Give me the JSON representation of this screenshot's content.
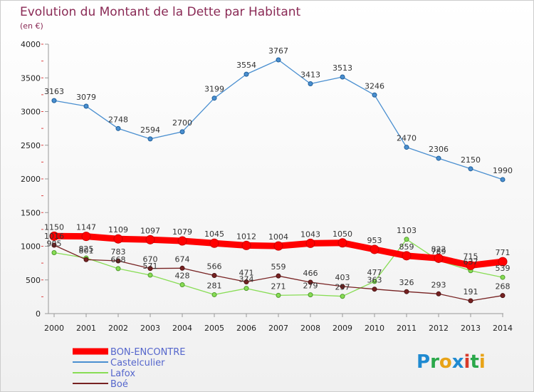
{
  "chart_data": {
    "type": "line",
    "title": "Evolution du Montant de la Dette par Habitant",
    "subtitle": "(en €)",
    "categories": [
      "2000",
      "2001",
      "2002",
      "2003",
      "2004",
      "2005",
      "2006",
      "2007",
      "2008",
      "2009",
      "2010",
      "2011",
      "2012",
      "2013",
      "2014"
    ],
    "ylim": [
      0,
      4000
    ],
    "yticks": [
      "0",
      "500",
      "1000",
      "1500",
      "2000",
      "2500",
      "3000",
      "3500",
      "4000"
    ],
    "grid": false,
    "legend_position": "bottom-left",
    "series": [
      {
        "name": "BON-ENCONTRE",
        "color": "#ff0000",
        "values": [
          1150,
          1147,
          1109,
          1097,
          1079,
          1045,
          1012,
          1004,
          1043,
          1050,
          953,
          859,
          822,
          715,
          771
        ]
      },
      {
        "name": "Castelculier",
        "color": "#4a8fd0",
        "values": [
          3163,
          3079,
          2748,
          2594,
          2700,
          3199,
          3554,
          3767,
          3413,
          3513,
          3246,
          2470,
          2306,
          2150,
          1990
        ]
      },
      {
        "name": "Lafox",
        "color": "#88dd55",
        "values": [
          905,
          825,
          668,
          571,
          428,
          281,
          374,
          271,
          279,
          257,
          477,
          1103,
          789,
          637,
          539
        ]
      },
      {
        "name": "Boé",
        "color": "#772222",
        "values": [
          1016,
          801,
          783,
          670,
          674,
          566,
          471,
          559,
          466,
          403,
          363,
          326,
          293,
          191,
          268
        ]
      }
    ]
  },
  "logo": {
    "text": "Proxiti"
  }
}
